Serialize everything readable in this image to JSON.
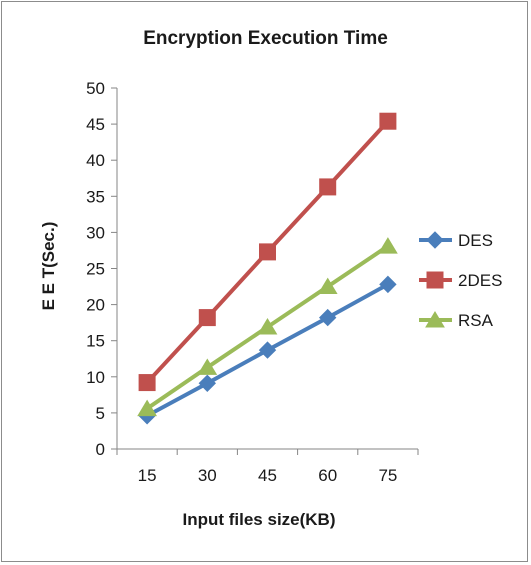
{
  "chart_data": {
    "type": "line",
    "title": "Encryption Execution Time",
    "xlabel": "Input files size(KB)",
    "ylabel": "E E T(Sec.)",
    "categories": [
      "15",
      "30",
      "45",
      "60",
      "75"
    ],
    "ylim": [
      0,
      50
    ],
    "yticks": [
      0,
      5,
      10,
      15,
      20,
      25,
      30,
      35,
      40,
      45,
      50
    ],
    "grid": false,
    "legend_position": "right",
    "series": [
      {
        "name": "DES",
        "values": [
          4.6,
          9.1,
          13.7,
          18.2,
          22.8
        ],
        "color": "#4a7ebb",
        "marker": "diamond"
      },
      {
        "name": "2DES",
        "values": [
          9.2,
          18.2,
          27.3,
          36.3,
          45.4
        ],
        "color": "#c0504d",
        "marker": "square"
      },
      {
        "name": "RSA",
        "values": [
          5.6,
          11.3,
          16.9,
          22.5,
          28.1
        ],
        "color": "#9bbb59",
        "marker": "triangle"
      }
    ]
  }
}
